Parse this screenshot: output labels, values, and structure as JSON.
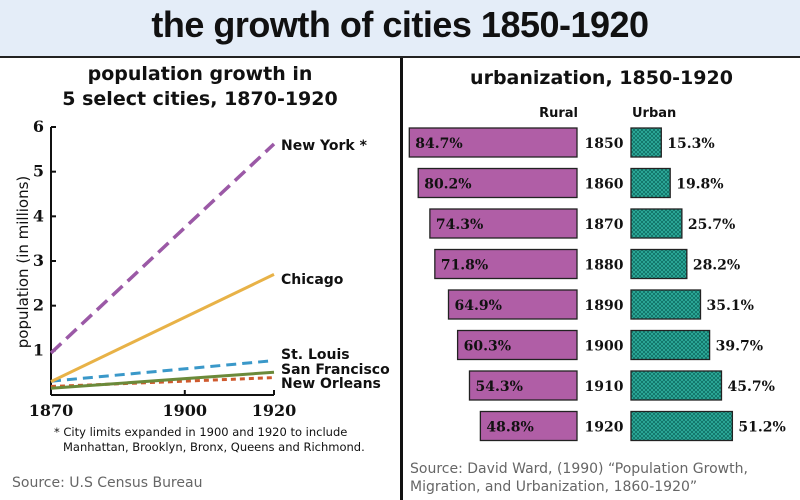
{
  "header": {
    "title": "the growth of cities 1850-1920"
  },
  "left_panel": {
    "title_line1": "population growth in",
    "title_line2": "5 select cities, 1870-1920",
    "footnote_line1": "* City limits expanded in 1900 and 1920 to include",
    "footnote_line2": "Manhattan, Brooklyn, Bronx, Queens and Richmond.",
    "source": "Source: U.S Census Bureau"
  },
  "right_panel": {
    "title": "urbanization, 1850-1920",
    "rural_header": "Rural",
    "urban_header": "Urban",
    "source_line1": "Source: David Ward, (1990) “Population Growth,",
    "source_line2": "Migration, and Urbanization, 1860-1920”"
  },
  "colors": {
    "title_bg": "#e4edf8",
    "new_york": "#9b59a6",
    "chicago": "#e8b247",
    "st_louis": "#3a98c9",
    "san_francisco": "#6b8a3a",
    "new_orleans": "#cf5a2e",
    "rural_bar": "#b05ea6",
    "urban_bar": "#1f9a8a"
  },
  "chart_data": [
    {
      "type": "line",
      "title": "population growth in 5 select cities, 1870-1920",
      "xlabel": "",
      "ylabel": "population (in millions)",
      "x": [
        1870,
        1920
      ],
      "xticks": [
        "1870",
        "1900",
        "1920"
      ],
      "xtick_values": [
        1870,
        1900,
        1920
      ],
      "yticks": [
        "1",
        "2",
        "3",
        "4",
        "5",
        "6"
      ],
      "ytick_values": [
        1,
        2,
        3,
        4,
        5,
        6
      ],
      "xlim": [
        1870,
        1920
      ],
      "ylim": [
        0,
        6
      ],
      "grid": false,
      "series": [
        {
          "name": "New York *",
          "key": "new_york",
          "style": "long-dash",
          "values": [
            0.94,
            5.62
          ]
        },
        {
          "name": "Chicago",
          "key": "chicago",
          "style": "solid",
          "values": [
            0.3,
            2.7
          ]
        },
        {
          "name": "St. Louis",
          "key": "st_louis",
          "style": "dash",
          "values": [
            0.31,
            0.77
          ]
        },
        {
          "name": "San Francisco",
          "key": "san_francisco",
          "style": "solid",
          "values": [
            0.15,
            0.51
          ]
        },
        {
          "name": "New Orleans",
          "key": "new_orleans",
          "style": "dot",
          "values": [
            0.19,
            0.39
          ]
        }
      ]
    },
    {
      "type": "bar",
      "title": "urbanization, 1850-1920",
      "categories": [
        "1850",
        "1860",
        "1870",
        "1880",
        "1890",
        "1900",
        "1910",
        "1920"
      ],
      "series": [
        {
          "name": "Rural",
          "values": [
            84.7,
            80.2,
            74.3,
            71.8,
            64.9,
            60.3,
            54.3,
            48.8
          ],
          "labels": [
            "84.7%",
            "80.2%",
            "74.3%",
            "71.8%",
            "64.9%",
            "60.3%",
            "54.3%",
            "48.8%"
          ]
        },
        {
          "name": "Urban",
          "values": [
            15.3,
            19.8,
            25.7,
            28.2,
            35.1,
            39.7,
            45.7,
            51.2
          ],
          "labels": [
            "15.3%",
            "19.8%",
            "25.7%",
            "28.2%",
            "35.1%",
            "39.7%",
            "45.7%",
            "51.2%"
          ]
        }
      ],
      "unit": "%",
      "orientation": "horizontal-butterfly"
    }
  ]
}
